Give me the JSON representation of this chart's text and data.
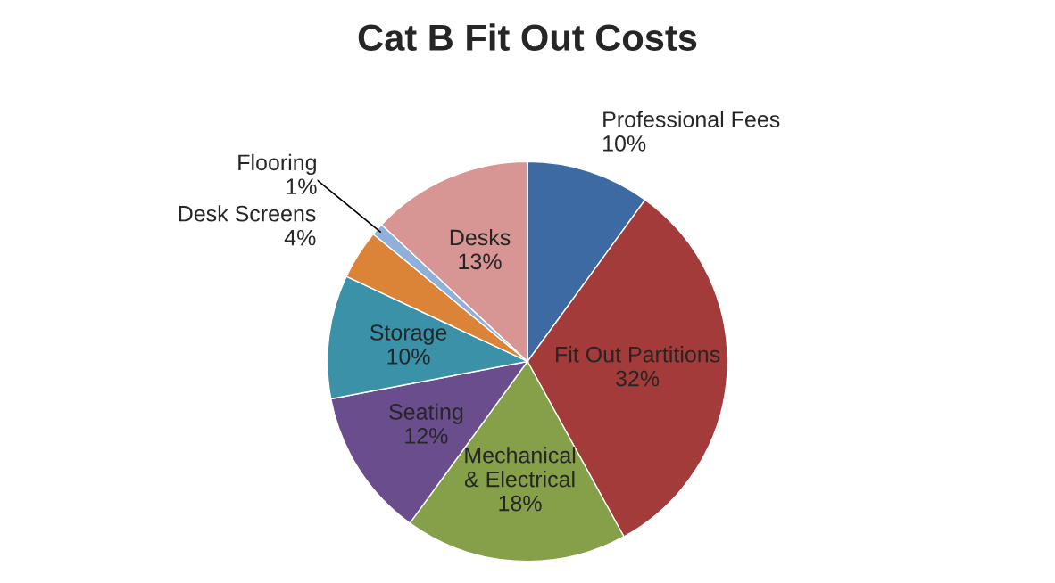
{
  "chart_data": {
    "type": "pie",
    "title": "Cat B Fit Out Costs",
    "categories": [
      "Professional Fees",
      "Fit Out Partitions",
      "Mechanical & Electrical",
      "Seating",
      "Storage",
      "Desk Screens",
      "Flooring",
      "Desks"
    ],
    "values": [
      10,
      32,
      18,
      12,
      10,
      4,
      1,
      13
    ],
    "colors": [
      "#3d6aa3",
      "#a33b3a",
      "#86a04a",
      "#6a4d8c",
      "#3a91a8",
      "#db8438",
      "#8fb0d8",
      "#d79593"
    ],
    "legend": false,
    "value_labels": [
      "10%",
      "32%",
      "18%",
      "12%",
      "10%",
      "4%",
      "1%",
      "13%"
    ]
  }
}
